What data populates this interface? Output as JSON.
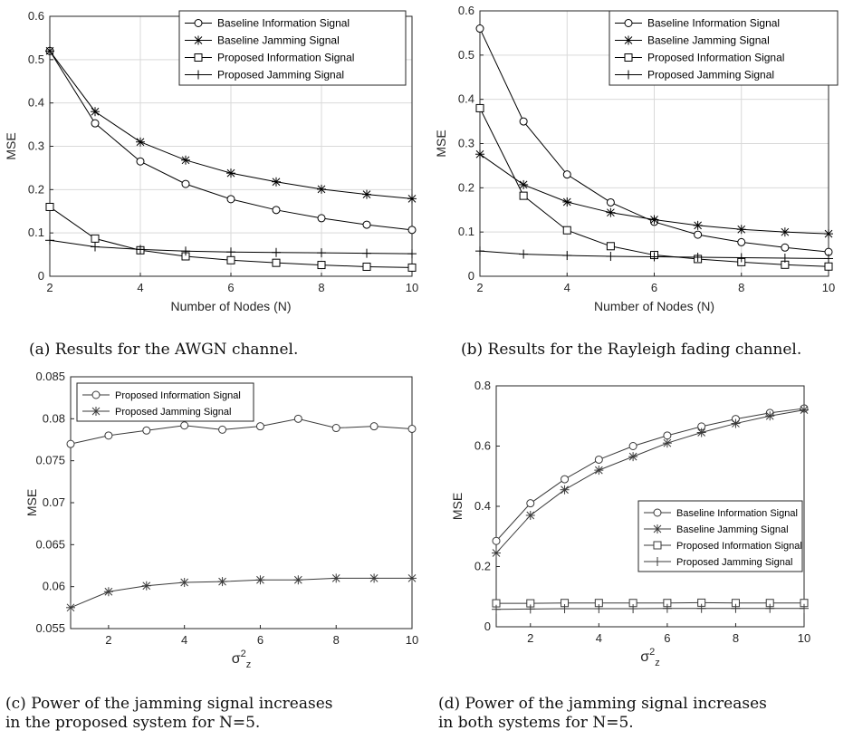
{
  "chart_data": [
    {
      "type": "line",
      "title": "",
      "xlabel": "Number of Nodes (N)",
      "ylabel": "MSE",
      "xlim": [
        2,
        10
      ],
      "ylim": [
        0,
        0.6
      ],
      "xticks": [
        2,
        4,
        6,
        8,
        10
      ],
      "yticks": [
        0,
        0.1,
        0.2,
        0.3,
        0.4,
        0.5,
        0.6
      ],
      "grid": true,
      "legend_position": "top-right",
      "x": [
        2,
        3,
        4,
        5,
        6,
        7,
        8,
        9,
        10
      ],
      "series": [
        {
          "name": "Baseline Information Signal",
          "marker": "circle",
          "values": [
            0.52,
            0.353,
            0.265,
            0.213,
            0.178,
            0.153,
            0.134,
            0.119,
            0.107
          ]
        },
        {
          "name": "Baseline Jamming Signal",
          "marker": "star",
          "values": [
            0.52,
            0.38,
            0.31,
            0.268,
            0.238,
            0.218,
            0.201,
            0.189,
            0.179
          ]
        },
        {
          "name": "Proposed Information Signal",
          "marker": "square",
          "values": [
            0.16,
            0.087,
            0.06,
            0.046,
            0.037,
            0.031,
            0.026,
            0.022,
            0.02
          ]
        },
        {
          "name": "Proposed Jamming Signal",
          "marker": "plus",
          "values": [
            0.083,
            0.068,
            0.062,
            0.058,
            0.056,
            0.055,
            0.054,
            0.053,
            0.052
          ]
        }
      ]
    },
    {
      "type": "line",
      "title": "",
      "xlabel": "Number of Nodes (N)",
      "ylabel": "MSE",
      "xlim": [
        2,
        10
      ],
      "ylim": [
        0,
        0.6
      ],
      "xticks": [
        2,
        4,
        6,
        8,
        10
      ],
      "yticks": [
        0,
        0.1,
        0.2,
        0.3,
        0.4,
        0.5,
        0.6
      ],
      "grid": true,
      "legend_position": "top-right",
      "x": [
        2,
        3,
        4,
        5,
        6,
        7,
        8,
        9,
        10
      ],
      "series": [
        {
          "name": "Baseline Information Signal",
          "marker": "circle",
          "values": [
            0.56,
            0.35,
            0.23,
            0.167,
            0.123,
            0.094,
            0.077,
            0.065,
            0.055
          ]
        },
        {
          "name": "Baseline Jamming Signal",
          "marker": "star",
          "values": [
            0.276,
            0.207,
            0.168,
            0.144,
            0.128,
            0.115,
            0.106,
            0.1,
            0.096
          ]
        },
        {
          "name": "Proposed Information Signal",
          "marker": "square",
          "values": [
            0.38,
            0.182,
            0.104,
            0.068,
            0.048,
            0.039,
            0.032,
            0.026,
            0.022
          ]
        },
        {
          "name": "Proposed Jamming Signal",
          "marker": "plus",
          "values": [
            0.057,
            0.05,
            0.047,
            0.045,
            0.044,
            0.043,
            0.042,
            0.041,
            0.04
          ]
        }
      ]
    },
    {
      "type": "line",
      "title": "",
      "xlabel": "σ²z",
      "ylabel": "MSE",
      "xlim": [
        1,
        10
      ],
      "ylim": [
        0.055,
        0.085
      ],
      "xticks": [
        2,
        4,
        6,
        8,
        10
      ],
      "yticks": [
        0.055,
        0.06,
        0.065,
        0.07,
        0.075,
        0.08,
        0.085
      ],
      "grid": false,
      "legend_position": "top-left",
      "x": [
        1,
        2,
        3,
        4,
        5,
        6,
        7,
        8,
        9,
        10
      ],
      "series": [
        {
          "name": "Proposed Information Signal",
          "marker": "circle",
          "values": [
            0.077,
            0.078,
            0.0786,
            0.0792,
            0.0787,
            0.0791,
            0.08,
            0.0789,
            0.0791,
            0.0788
          ]
        },
        {
          "name": "Proposed Jamming Signal",
          "marker": "star",
          "values": [
            0.0575,
            0.0594,
            0.0601,
            0.0605,
            0.0606,
            0.0608,
            0.0608,
            0.061,
            0.061,
            0.061
          ]
        }
      ]
    },
    {
      "type": "line",
      "title": "",
      "xlabel": "σ²z",
      "ylabel": "MSE",
      "xlim": [
        1,
        10
      ],
      "ylim": [
        0,
        0.8
      ],
      "xticks": [
        2,
        4,
        6,
        8,
        10
      ],
      "yticks": [
        0,
        0.2,
        0.4,
        0.6,
        0.8
      ],
      "grid": false,
      "legend_position": "center-right",
      "x": [
        1,
        2,
        3,
        4,
        5,
        6,
        7,
        8,
        9,
        10
      ],
      "series": [
        {
          "name": "Baseline Information Signal",
          "marker": "circle",
          "values": [
            0.285,
            0.41,
            0.49,
            0.555,
            0.6,
            0.635,
            0.665,
            0.69,
            0.71,
            0.725
          ]
        },
        {
          "name": "Baseline Jamming Signal",
          "marker": "star",
          "values": [
            0.245,
            0.37,
            0.455,
            0.52,
            0.565,
            0.61,
            0.645,
            0.675,
            0.7,
            0.72
          ]
        },
        {
          "name": "Proposed Information Signal",
          "marker": "square",
          "values": [
            0.078,
            0.078,
            0.079,
            0.079,
            0.079,
            0.079,
            0.08,
            0.079,
            0.079,
            0.079
          ]
        },
        {
          "name": "Proposed Jamming Signal",
          "marker": "plus",
          "values": [
            0.058,
            0.059,
            0.06,
            0.06,
            0.06,
            0.061,
            0.061,
            0.061,
            0.061,
            0.061
          ]
        }
      ]
    }
  ],
  "captions": [
    "(a) Results for the AWGN channel.",
    "(b) Results for the Rayleigh fading channel.",
    "(c) Power of the jamming signal increases\nin the proposed system for N=5.",
    "(d) Power of the jamming signal increases\nin both systems for N=5."
  ]
}
